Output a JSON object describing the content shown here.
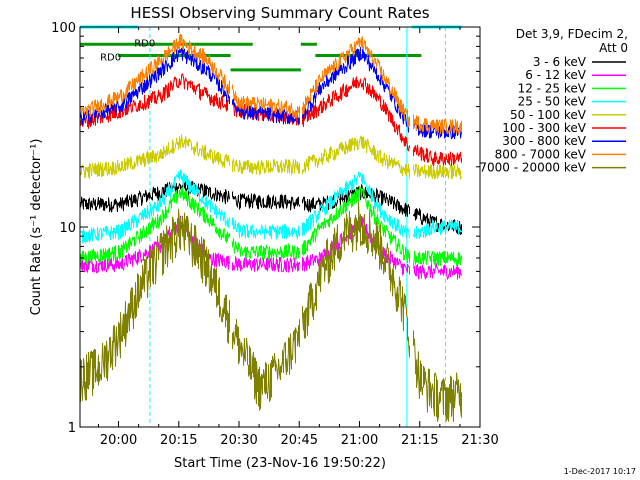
{
  "chart_data": {
    "type": "line",
    "title": "HESSI Observing Summary Count Rates",
    "xlabel": "Start Time (23-Nov-16 19:50:22)",
    "ylabel": "Count Rate (s⁻¹ detector⁻¹)",
    "footer": "1-Dec-2017 10:17",
    "x_axis": {
      "unit": "minutes after 19:50:22",
      "range": [
        0,
        99.6
      ],
      "ticks": [
        {
          "label": "20:00",
          "value": 9.6
        },
        {
          "label": "20:15",
          "value": 24.6
        },
        {
          "label": "20:30",
          "value": 39.6
        },
        {
          "label": "20:45",
          "value": 54.6
        },
        {
          "label": "21:00",
          "value": 69.6
        },
        {
          "label": "21:15",
          "value": 84.6
        },
        {
          "label": "21:30",
          "value": 99.6
        }
      ]
    },
    "y_axis": {
      "scale": "log",
      "range": [
        1,
        100
      ],
      "tick_labels": [
        {
          "label": "1",
          "value": 1
        },
        {
          "label": "10",
          "value": 10
        },
        {
          "label": "100",
          "value": 100
        }
      ]
    },
    "legend": {
      "placement": "right",
      "header": [
        "Det 3,9, FDecim 2,",
        "Att 0"
      ]
    },
    "annotations": [
      {
        "text": "RD0",
        "x": 5.0,
        "y": 68
      },
      {
        "text": "RD0",
        "x": 13.5,
        "y": 80
      }
    ],
    "series": [
      {
        "name": "3 - 6 keV",
        "color": "#000000",
        "x": [
          0,
          10,
          20,
          25,
          32,
          40,
          50,
          55,
          60,
          70,
          75,
          82,
          88,
          95
        ],
        "y": [
          13,
          13,
          15,
          16,
          15,
          13.5,
          13.5,
          13,
          13,
          15,
          14,
          12,
          10.5,
          10
        ]
      },
      {
        "name": "6 - 12 keV",
        "color": "#ff00ff",
        "x": [
          0,
          10,
          20,
          25,
          32,
          40,
          50,
          55,
          60,
          70,
          75,
          82,
          88,
          95
        ],
        "y": [
          6.5,
          6.5,
          8,
          10.5,
          7,
          6.5,
          6.5,
          6.5,
          7,
          10.5,
          7.5,
          6,
          6,
          6
        ]
      },
      {
        "name": "12 - 25 keV",
        "color": "#00ff00",
        "x": [
          0,
          10,
          20,
          25,
          32,
          40,
          50,
          55,
          60,
          70,
          75,
          82,
          88,
          95
        ],
        "y": [
          7,
          7.5,
          11,
          15,
          11,
          7.5,
          7.5,
          7.5,
          10,
          15,
          10,
          7,
          7,
          7
        ]
      },
      {
        "name": "25 - 50 keV",
        "color": "#00ffff",
        "x": [
          0,
          10,
          20,
          25,
          32,
          40,
          50,
          55,
          60,
          70,
          75,
          82,
          88,
          95
        ],
        "y": [
          9,
          9.5,
          13,
          18,
          13,
          9.5,
          9.5,
          9.5,
          12,
          18,
          12,
          9,
          10,
          10
        ]
      },
      {
        "name": "50 - 100 keV",
        "color": "#cccc00",
        "x": [
          0,
          10,
          20,
          25,
          32,
          40,
          50,
          55,
          60,
          70,
          75,
          82,
          88,
          95
        ],
        "y": [
          19,
          20,
          23,
          27,
          23,
          20,
          20,
          20,
          22,
          27,
          22,
          19,
          19,
          19
        ]
      },
      {
        "name": "100 - 300 keV",
        "color": "#ff0000",
        "x": [
          0,
          10,
          20,
          25,
          32,
          40,
          50,
          55,
          60,
          70,
          75,
          82,
          88,
          95
        ],
        "y": [
          33,
          38,
          45,
          55,
          45,
          38,
          36,
          34,
          40,
          55,
          42,
          25,
          22,
          22
        ]
      },
      {
        "name": "300 - 800 keV",
        "color": "#0000ff",
        "x": [
          0,
          10,
          20,
          25,
          32,
          40,
          50,
          55,
          60,
          70,
          75,
          82,
          88,
          95
        ],
        "y": [
          35,
          40,
          60,
          75,
          60,
          38,
          36,
          35,
          50,
          75,
          55,
          32,
          30,
          30
        ]
      },
      {
        "name": "800 - 7000 keV",
        "color": "#ff8000",
        "x": [
          0,
          10,
          20,
          25,
          32,
          40,
          50,
          55,
          60,
          70,
          75,
          82,
          88,
          95
        ],
        "y": [
          37,
          45,
          68,
          85,
          68,
          42,
          40,
          38,
          55,
          85,
          60,
          34,
          32,
          32
        ]
      },
      {
        "name": "7000 - 20000 keV",
        "color": "#808000",
        "x": [
          0,
          5,
          10,
          15,
          20,
          25,
          30,
          35,
          40,
          45,
          50,
          55,
          60,
          65,
          70,
          75,
          80,
          85,
          90,
          95
        ],
        "y": [
          1.8,
          2.0,
          3.0,
          5.0,
          7.5,
          10,
          7.5,
          4.5,
          2.5,
          1.6,
          2.0,
          3.0,
          6.0,
          9.0,
          11,
          8.0,
          4.5,
          1.7,
          1.4,
          1.5
        ]
      }
    ],
    "flags": [
      {
        "color": "#00ffff",
        "y": 100,
        "segments": [
          [
            0,
            14.5
          ],
          [
            82.6,
            95
          ]
        ]
      },
      {
        "color": "#009900",
        "y": 82,
        "segments": [
          [
            0,
            43
          ],
          [
            55,
            59
          ]
        ]
      },
      {
        "color": "#009900",
        "y": 72,
        "segments": [
          [
            9.5,
            37.5
          ],
          [
            58.6,
            85
          ]
        ]
      },
      {
        "color": "#009900",
        "y": 61,
        "segments": [
          [
            37.5,
            55
          ]
        ]
      }
    ],
    "vlines": [
      {
        "color": "#00ffff",
        "style": "solid",
        "x": [
          0,
          81.4
        ]
      },
      {
        "color": "#00ffff",
        "style": "dashed",
        "x": [
          17.4,
          91.0
        ]
      }
    ]
  }
}
